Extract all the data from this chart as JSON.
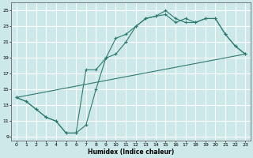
{
  "xlabel": "Humidex (Indice chaleur)",
  "bg_color": "#cce8e8",
  "grid_color": "#ffffff",
  "line_color": "#2d7a6e",
  "xlim": [
    -0.5,
    23.5
  ],
  "ylim": [
    8.5,
    26.0
  ],
  "yticks": [
    9,
    11,
    13,
    15,
    17,
    19,
    21,
    23,
    25
  ],
  "xticks": [
    0,
    1,
    2,
    3,
    4,
    5,
    6,
    7,
    8,
    9,
    10,
    11,
    12,
    13,
    14,
    15,
    16,
    17,
    18,
    19,
    20,
    21,
    22,
    23
  ],
  "line1_x": [
    0,
    1,
    2,
    3,
    4,
    5,
    6,
    7,
    8,
    9,
    10,
    11,
    12,
    13,
    14,
    15,
    16,
    17,
    18,
    19,
    20,
    21,
    22,
    23
  ],
  "line1_y": [
    14.0,
    13.5,
    12.5,
    11.5,
    11.0,
    9.5,
    9.5,
    10.5,
    15.0,
    19.0,
    19.5,
    21.0,
    23.0,
    24.0,
    24.3,
    25.0,
    24.0,
    23.5,
    23.5,
    24.0,
    24.0,
    22.0,
    20.5,
    19.5
  ],
  "line2_x": [
    0,
    1,
    2,
    3,
    4,
    5,
    6,
    7,
    8,
    9,
    10,
    11,
    12,
    13,
    14,
    15,
    16,
    17,
    18,
    19,
    20,
    21,
    22,
    23
  ],
  "line2_y": [
    14.0,
    13.5,
    12.5,
    11.5,
    11.0,
    9.5,
    9.5,
    17.5,
    17.5,
    19.0,
    21.5,
    22.0,
    23.0,
    24.0,
    24.3,
    24.5,
    23.5,
    24.0,
    23.5,
    24.0,
    24.0,
    22.0,
    20.5,
    19.5
  ],
  "line3_x": [
    0,
    23
  ],
  "line3_y": [
    14.0,
    19.5
  ]
}
